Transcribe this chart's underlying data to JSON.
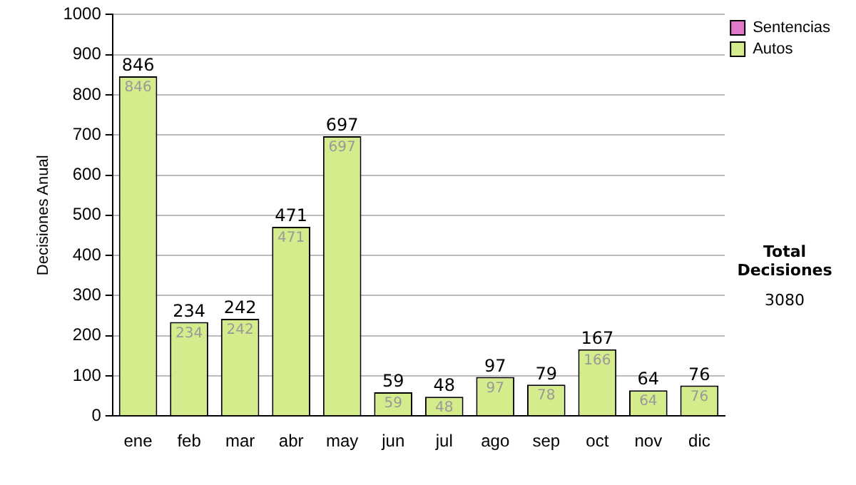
{
  "chart_data": {
    "type": "bar",
    "ylabel": "Decisiones Anual",
    "categories": [
      "ene",
      "feb",
      "mar",
      "abr",
      "may",
      "jun",
      "jul",
      "ago",
      "sep",
      "oct",
      "nov",
      "dic"
    ],
    "stacked": true,
    "series": [
      {
        "name": "Autos",
        "color": "#d4ec8c",
        "values": [
          846,
          234,
          242,
          471,
          697,
          59,
          48,
          97,
          78,
          166,
          64,
          76
        ],
        "value_labels": [
          "846",
          "234",
          "242",
          "471",
          "697",
          "59",
          "48",
          "97",
          "78",
          "166",
          "64",
          "76"
        ]
      },
      {
        "name": "Sentencias",
        "color": "#e07ac8",
        "values": [
          null,
          null,
          null,
          null,
          null,
          null,
          null,
          null,
          null,
          null,
          null,
          null
        ]
      }
    ],
    "totals": [
      "846",
      "234",
      "242",
      "471",
      "697",
      "59",
      "48",
      "97",
      "79",
      "167",
      "64",
      "76"
    ],
    "ylim": [
      0,
      1000
    ],
    "yticks": [
      0,
      100,
      200,
      300,
      400,
      500,
      600,
      700,
      800,
      900,
      1000
    ],
    "grid": "y",
    "legend": "right",
    "annotations": [
      "Total Decisiones",
      "3080"
    ]
  }
}
